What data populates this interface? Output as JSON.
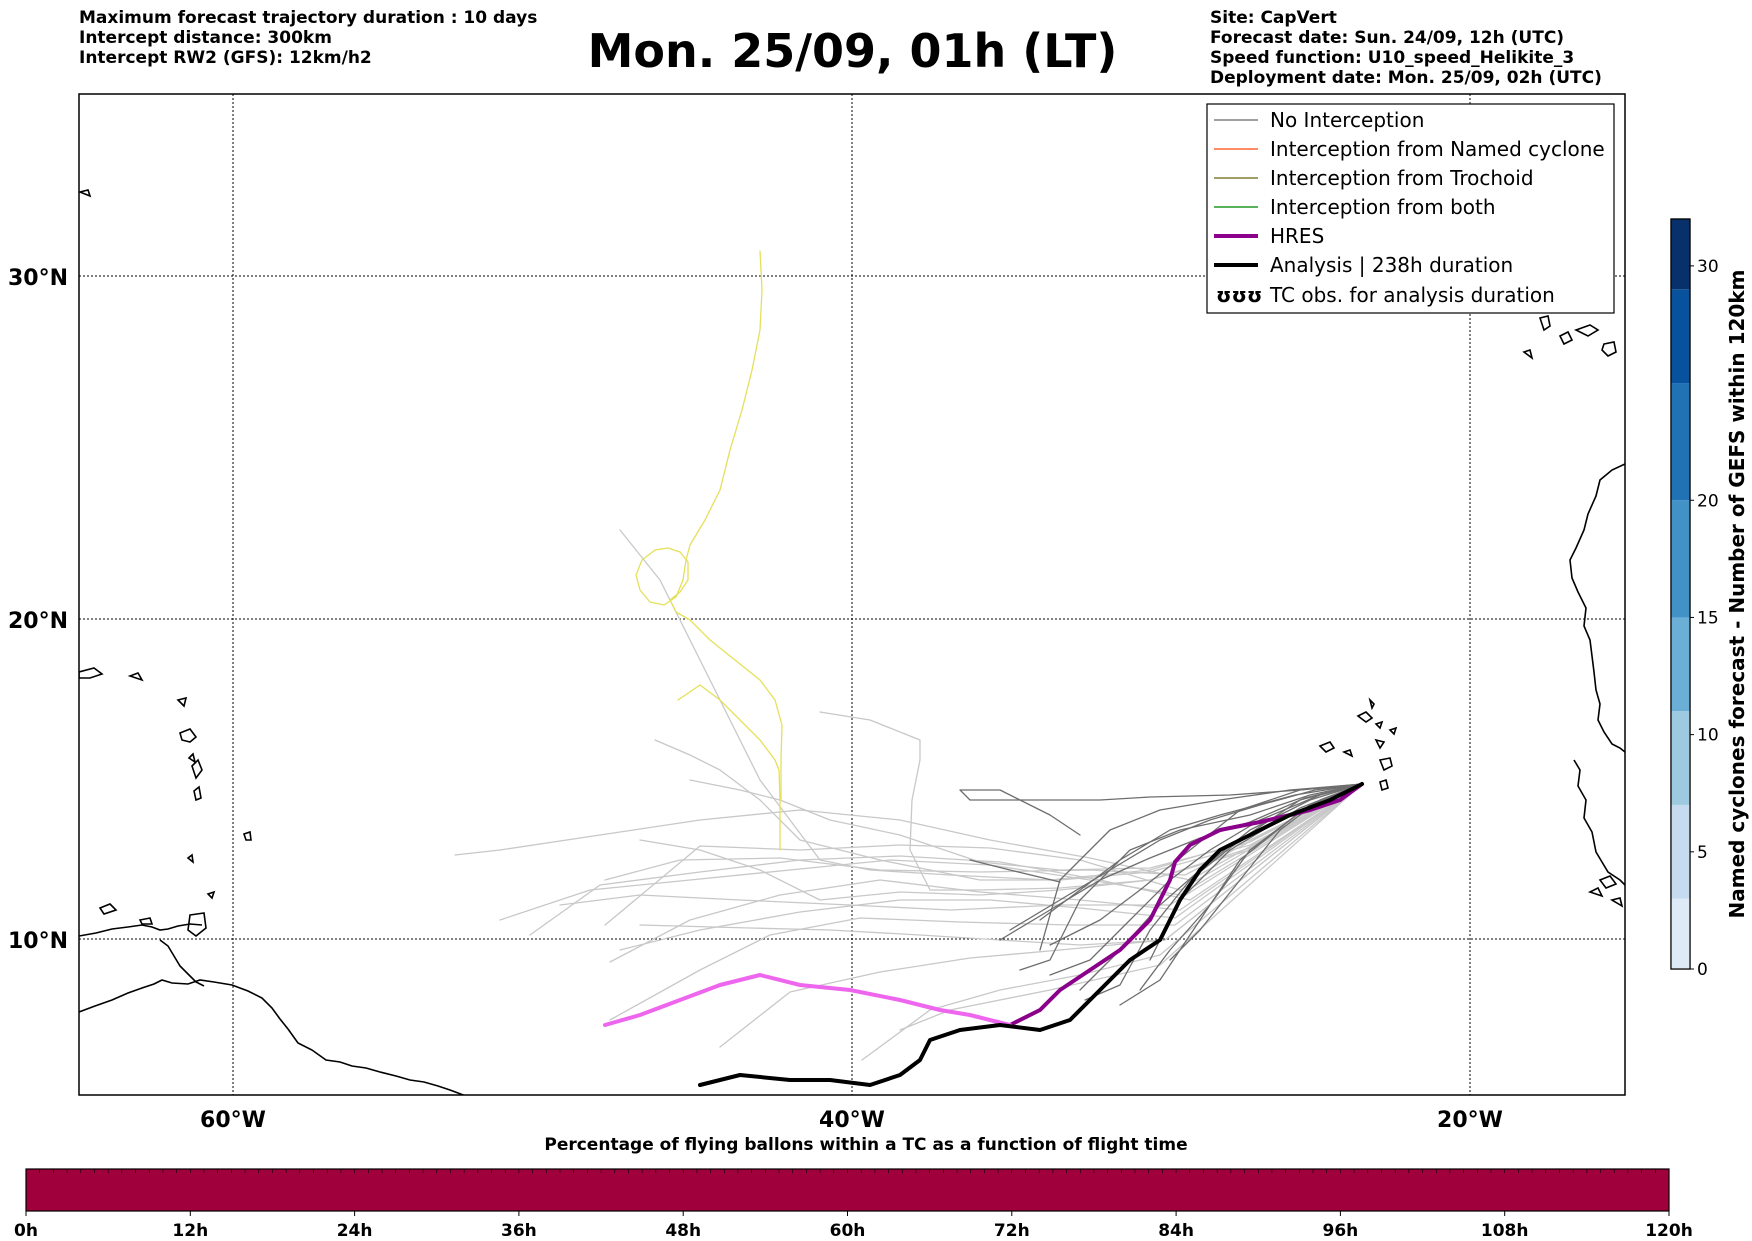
{
  "header": {
    "info_left": [
      "Maximum forecast trajectory duration : 10 days",
      "Intercept distance: 300km",
      "Intercept RW2 (GFS):  12km/h2"
    ],
    "title": "Mon. 25/09, 01h (LT)",
    "info_right": [
      "Site: CapVert",
      "Forecast date: Sun. 24/09, 12h (UTC)",
      "Speed function: U10_speed_Helikite_3",
      "Deployment date: Mon. 25/09, 02h (UTC)"
    ]
  },
  "map": {
    "lat_labels": [
      "30°N",
      "20°N",
      "10°N"
    ],
    "lon_labels": [
      "60°W",
      "40°W",
      "20°W"
    ],
    "grid": true
  },
  "legend": {
    "items": [
      {
        "label": "No Interception",
        "color": "#808080"
      },
      {
        "label": "Interception from Named cyclone",
        "color": "#ff6633"
      },
      {
        "label": "Interception from Trochoid",
        "color": "#808033"
      },
      {
        "label": "Interception from both",
        "color": "#229922"
      },
      {
        "label": "HRES",
        "color": "#8b008b"
      },
      {
        "label": "Analysis | 238h duration",
        "color": "#000000"
      },
      {
        "label": "TC obs. for analysis duration",
        "color": "#000000",
        "symbol": "ʊʊʊ"
      }
    ]
  },
  "colorbar_right": {
    "title": "Named cyclones forecast - Number of GEFS within 120km",
    "ticks": [
      "0",
      "5",
      "10",
      "15",
      "20",
      "30"
    ],
    "range": [
      0,
      32
    ],
    "colors": [
      "#deebf7",
      "#c6dbef",
      "#9ecae1",
      "#6baed6",
      "#4292c6",
      "#2171b5",
      "#08519c",
      "#08306b"
    ]
  },
  "colorbar_bottom": {
    "title": "Percentage of flying ballons within a TC as a function of flight time",
    "ticks": [
      "0h",
      "12h",
      "24h",
      "36h",
      "48h",
      "60h",
      "72h",
      "84h",
      "96h",
      "108h",
      "120h"
    ],
    "fill_color": "#a0003c"
  },
  "trajectory_colors": {
    "no_interception_light": "#c8c8c8",
    "no_interception_dark": "#6e6e6e",
    "yellow": "#e5e05a",
    "hres": "#8b008b",
    "hres_light": "#ee66ee",
    "analysis": "#000000"
  }
}
